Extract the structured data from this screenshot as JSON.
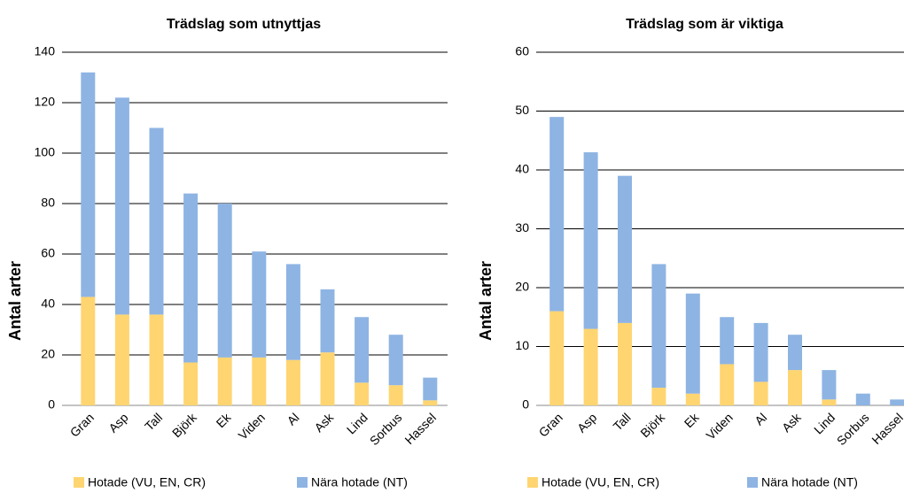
{
  "chart_data": [
    {
      "type": "bar",
      "stacked": true,
      "title": "Trädslag som utnyttjas",
      "y_label": "Antal arter",
      "categories": [
        "Gran",
        "Asp",
        "Tall",
        "Björk",
        "Ek",
        "Viden",
        "Al",
        "Ask",
        "Lind",
        "Sorbus",
        "Hassel"
      ],
      "series": [
        {
          "name": "Hotade (VU, EN, CR)",
          "color": "#ffd571",
          "values": [
            43,
            36,
            36,
            17,
            19,
            19,
            18,
            21,
            9,
            8,
            2
          ]
        },
        {
          "name": "Nära hotade (NT)",
          "color": "#8eb4e3",
          "values": [
            89,
            86,
            74,
            67,
            61,
            42,
            38,
            25,
            26,
            20,
            9
          ]
        }
      ],
      "ylim": [
        0,
        140
      ],
      "yticks": [
        0,
        20,
        40,
        60,
        80,
        100,
        120,
        140
      ],
      "grid": true
    },
    {
      "type": "bar",
      "stacked": true,
      "title": "Trädslag som är viktiga",
      "y_label": "Antal arter",
      "categories": [
        "Gran",
        "Asp",
        "Tall",
        "Björk",
        "Ek",
        "Viden",
        "Al",
        "Ask",
        "Lind",
        "Sorbus",
        "Hassel"
      ],
      "series": [
        {
          "name": "Hotade (VU, EN, CR)",
          "color": "#ffd571",
          "values": [
            16,
            13,
            14,
            3,
            2,
            7,
            4,
            6,
            1,
            0,
            0
          ]
        },
        {
          "name": "Nära hotade (NT)",
          "color": "#8eb4e3",
          "values": [
            33,
            30,
            25,
            21,
            17,
            8,
            10,
            6,
            5,
            2,
            1
          ]
        }
      ],
      "ylim": [
        0,
        60
      ],
      "yticks": [
        0,
        10,
        20,
        30,
        40,
        50,
        60
      ],
      "grid": true
    }
  ]
}
